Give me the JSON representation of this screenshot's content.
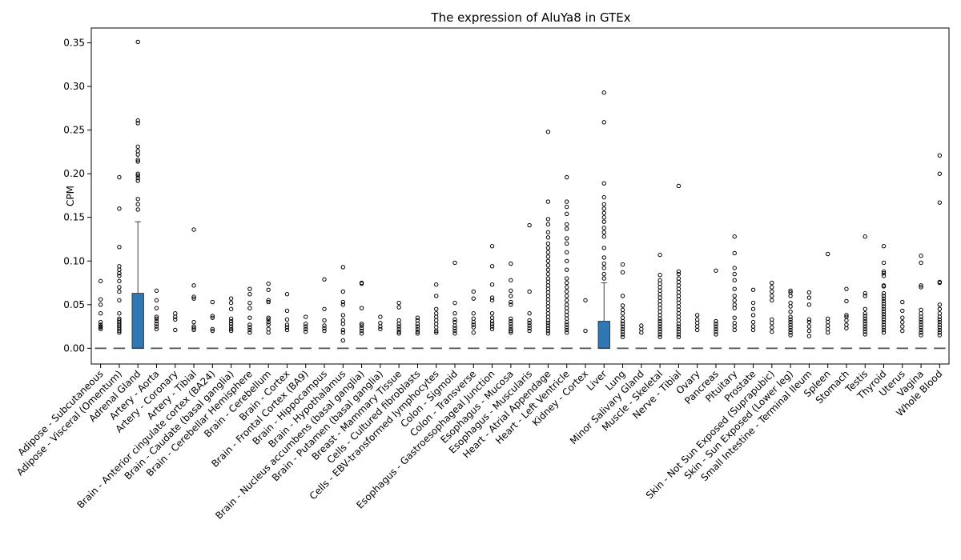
{
  "chart_data": {
    "type": "box",
    "title": "The expression of AluYa8 in GTEx",
    "xlabel": "",
    "ylabel": "CPM",
    "ylim": [
      -0.018,
      0.367
    ],
    "yticks": [
      0.0,
      0.05,
      0.1,
      0.15,
      0.2,
      0.25,
      0.3,
      0.35
    ],
    "ytick_labels": [
      "0.00",
      "0.05",
      "0.10",
      "0.15",
      "0.20",
      "0.25",
      "0.30",
      "0.35"
    ],
    "grid": false,
    "box_color": "#2f78b3",
    "categories": [
      "Adipose - Subcutaneous",
      "Adipose - Visceral (Omentum)",
      "Adrenal Gland",
      "Artery - Aorta",
      "Artery - Coronary",
      "Artery - Tibial",
      "Brain - Anterior cingulate cortex (BA24)",
      "Brain - Caudate (basal ganglia)",
      "Brain - Cerebellar Hemisphere",
      "Brain - Cerebellum",
      "Brain - Cortex",
      "Brain - Frontal Cortex (BA9)",
      "Brain - Hippocampus",
      "Brain - Hypothalamus",
      "Brain - Nucleus accumbens (basal ganglia)",
      "Brain - Putamen (basal ganglia)",
      "Breast - Mammary Tissue",
      "Cells - Cultured fibroblasts",
      "Cells - EBV-transformed lymphocytes",
      "Colon - Sigmoid",
      "Colon - Transverse",
      "Esophagus - Gastroesophageal Junction",
      "Esophagus - Mucosa",
      "Esophagus - Muscularis",
      "Heart - Atrial Appendage",
      "Heart - Left Ventricle",
      "Kidney - Cortex",
      "Liver",
      "Lung",
      "Minor Salivary Gland",
      "Muscle - Skeletal",
      "Nerve - Tibial",
      "Ovary",
      "Pancreas",
      "Pituitary",
      "Prostate",
      "Skin - Not Sun Exposed (Suprapubic)",
      "Skin - Sun Exposed (Lower leg)",
      "Small Intestine - Terminal Ileum",
      "Spleen",
      "Stomach",
      "Testis",
      "Thyroid",
      "Uterus",
      "Vagina",
      "Whole Blood"
    ],
    "boxes": [
      {
        "q1": 0,
        "median": 0,
        "q3": 0,
        "whislo": 0,
        "whishi": 0,
        "fliers": [
          0.022,
          0.024,
          0.025,
          0.027,
          0.03,
          0.04,
          0.05,
          0.056,
          0.077
        ]
      },
      {
        "q1": 0,
        "median": 0,
        "q3": 0,
        "whislo": 0,
        "whishi": 0,
        "fliers": [
          0.018,
          0.02,
          0.022,
          0.024,
          0.026,
          0.028,
          0.03,
          0.032,
          0.034,
          0.04,
          0.055,
          0.065,
          0.07,
          0.077,
          0.083,
          0.086,
          0.09,
          0.094,
          0.116,
          0.16,
          0.196
        ]
      },
      {
        "q1": 0,
        "median": 0,
        "q3": 0.063,
        "whislo": 0,
        "whishi": 0.145,
        "fliers": [
          0.159,
          0.165,
          0.171,
          0.192,
          0.195,
          0.198,
          0.2,
          0.214,
          0.216,
          0.222,
          0.226,
          0.231,
          0.258,
          0.261,
          0.351
        ]
      },
      {
        "q1": 0,
        "median": 0,
        "q3": 0,
        "whislo": 0,
        "whishi": 0,
        "fliers": [
          0.022,
          0.025,
          0.028,
          0.031,
          0.034,
          0.036,
          0.046,
          0.055,
          0.066
        ]
      },
      {
        "q1": 0,
        "median": 0,
        "q3": 0,
        "whislo": 0,
        "whishi": 0,
        "fliers": [
          0.021,
          0.033,
          0.036,
          0.04
        ]
      },
      {
        "q1": 0,
        "median": 0,
        "q3": 0,
        "whislo": 0,
        "whishi": 0,
        "fliers": [
          0.021,
          0.023,
          0.025,
          0.03,
          0.057,
          0.059,
          0.072,
          0.136
        ]
      },
      {
        "q1": 0,
        "median": 0,
        "q3": 0,
        "whislo": 0,
        "whishi": 0,
        "fliers": [
          0.02,
          0.022,
          0.035,
          0.037,
          0.053
        ]
      },
      {
        "q1": 0,
        "median": 0,
        "q3": 0,
        "whislo": 0,
        "whishi": 0,
        "fliers": [
          0.02,
          0.022,
          0.025,
          0.028,
          0.031,
          0.034,
          0.045,
          0.052,
          0.057
        ]
      },
      {
        "q1": 0,
        "median": 0,
        "q3": 0,
        "whislo": 0,
        "whishi": 0,
        "fliers": [
          0.018,
          0.021,
          0.024,
          0.027,
          0.035,
          0.046,
          0.052,
          0.062,
          0.068
        ]
      },
      {
        "q1": 0,
        "median": 0,
        "q3": 0,
        "whislo": 0,
        "whishi": 0,
        "fliers": [
          0.018,
          0.022,
          0.027,
          0.03,
          0.033,
          0.035,
          0.053,
          0.055,
          0.067,
          0.074
        ]
      },
      {
        "q1": 0,
        "median": 0,
        "q3": 0,
        "whislo": 0,
        "whishi": 0,
        "fliers": [
          0.021,
          0.024,
          0.027,
          0.033,
          0.043,
          0.062
        ]
      },
      {
        "q1": 0,
        "median": 0,
        "q3": 0,
        "whislo": 0,
        "whishi": 0,
        "fliers": [
          0.019,
          0.022,
          0.025,
          0.028,
          0.036
        ]
      },
      {
        "q1": 0,
        "median": 0,
        "q3": 0,
        "whislo": 0,
        "whishi": 0,
        "fliers": [
          0.02,
          0.023,
          0.026,
          0.032,
          0.045,
          0.079
        ]
      },
      {
        "q1": 0,
        "median": 0,
        "q3": 0,
        "whislo": 0,
        "whishi": 0,
        "fliers": [
          0.009,
          0.018,
          0.021,
          0.028,
          0.032,
          0.038,
          0.05,
          0.053,
          0.065,
          0.093
        ]
      },
      {
        "q1": 0,
        "median": 0,
        "q3": 0,
        "whislo": 0,
        "whishi": 0,
        "fliers": [
          0.017,
          0.02,
          0.023,
          0.026,
          0.028,
          0.046,
          0.074,
          0.075
        ]
      },
      {
        "q1": 0,
        "median": 0,
        "q3": 0,
        "whislo": 0,
        "whishi": 0,
        "fliers": [
          0.022,
          0.025,
          0.029,
          0.036
        ]
      },
      {
        "q1": 0,
        "median": 0,
        "q3": 0,
        "whislo": 0,
        "whishi": 0,
        "fliers": [
          0.017,
          0.019,
          0.022,
          0.025,
          0.028,
          0.032,
          0.047,
          0.052
        ]
      },
      {
        "q1": 0,
        "median": 0,
        "q3": 0,
        "whislo": 0,
        "whishi": 0,
        "fliers": [
          0.017,
          0.019,
          0.022,
          0.025,
          0.028,
          0.032,
          0.035
        ]
      },
      {
        "q1": 0,
        "median": 0,
        "q3": 0,
        "whislo": 0,
        "whishi": 0,
        "fliers": [
          0.018,
          0.02,
          0.024,
          0.028,
          0.032,
          0.036,
          0.04,
          0.045,
          0.06,
          0.073
        ]
      },
      {
        "q1": 0,
        "median": 0,
        "q3": 0,
        "whislo": 0,
        "whishi": 0,
        "fliers": [
          0.017,
          0.02,
          0.023,
          0.026,
          0.03,
          0.033,
          0.04,
          0.052,
          0.098
        ]
      },
      {
        "q1": 0,
        "median": 0,
        "q3": 0,
        "whislo": 0,
        "whishi": 0,
        "fliers": [
          0.018,
          0.024,
          0.027,
          0.03,
          0.034,
          0.04,
          0.057,
          0.065
        ]
      },
      {
        "q1": 0,
        "median": 0,
        "q3": 0,
        "whislo": 0,
        "whishi": 0,
        "fliers": [
          0.022,
          0.025,
          0.028,
          0.031,
          0.035,
          0.04,
          0.055,
          0.058,
          0.073,
          0.094,
          0.117
        ]
      },
      {
        "q1": 0,
        "median": 0,
        "q3": 0,
        "whislo": 0,
        "whishi": 0,
        "fliers": [
          0.018,
          0.02,
          0.022,
          0.025,
          0.028,
          0.031,
          0.034,
          0.05,
          0.053,
          0.06,
          0.066,
          0.078,
          0.097
        ]
      },
      {
        "q1": 0,
        "median": 0,
        "q3": 0,
        "whislo": 0,
        "whishi": 0,
        "fliers": [
          0.02,
          0.023,
          0.026,
          0.029,
          0.032,
          0.04,
          0.065,
          0.141
        ]
      },
      {
        "q1": 0,
        "median": 0,
        "q3": 0,
        "whislo": 0,
        "whishi": 0,
        "fliers": [
          0.017,
          0.02,
          0.023,
          0.026,
          0.029,
          0.032,
          0.036,
          0.04,
          0.044,
          0.048,
          0.052,
          0.056,
          0.06,
          0.064,
          0.068,
          0.072,
          0.076,
          0.08,
          0.085,
          0.09,
          0.095,
          0.1,
          0.105,
          0.11,
          0.115,
          0.12,
          0.127,
          0.133,
          0.142,
          0.148,
          0.168,
          0.248
        ]
      },
      {
        "q1": 0,
        "median": 0,
        "q3": 0,
        "whislo": 0,
        "whishi": 0,
        "fliers": [
          0.018,
          0.021,
          0.024,
          0.027,
          0.03,
          0.034,
          0.038,
          0.042,
          0.046,
          0.05,
          0.055,
          0.06,
          0.065,
          0.07,
          0.075,
          0.08,
          0.09,
          0.1,
          0.11,
          0.12,
          0.126,
          0.137,
          0.142,
          0.154,
          0.162,
          0.168,
          0.196
        ]
      },
      {
        "q1": 0,
        "median": 0,
        "q3": 0,
        "whislo": 0,
        "whishi": 0,
        "fliers": [
          0.02,
          0.055
        ]
      },
      {
        "q1": 0,
        "median": 0,
        "q3": 0.031,
        "whislo": 0,
        "whishi": 0.075,
        "fliers": [
          0.08,
          0.085,
          0.092,
          0.097,
          0.104,
          0.115,
          0.128,
          0.133,
          0.138,
          0.145,
          0.15,
          0.155,
          0.16,
          0.165,
          0.173,
          0.189,
          0.259,
          0.293
        ]
      },
      {
        "q1": 0,
        "median": 0,
        "q3": 0,
        "whislo": 0,
        "whishi": 0,
        "fliers": [
          0.013,
          0.016,
          0.019,
          0.022,
          0.025,
          0.028,
          0.031,
          0.035,
          0.04,
          0.044,
          0.049,
          0.06,
          0.087,
          0.096
        ]
      },
      {
        "q1": 0,
        "median": 0,
        "q3": 0,
        "whislo": 0,
        "whishi": 0,
        "fliers": [
          0.018,
          0.022,
          0.026
        ]
      },
      {
        "q1": 0,
        "median": 0,
        "q3": 0,
        "whislo": 0,
        "whishi": 0,
        "fliers": [
          0.013,
          0.016,
          0.019,
          0.022,
          0.025,
          0.028,
          0.031,
          0.034,
          0.038,
          0.042,
          0.046,
          0.05,
          0.054,
          0.058,
          0.062,
          0.066,
          0.07,
          0.074,
          0.078,
          0.084,
          0.107
        ]
      },
      {
        "q1": 0,
        "median": 0,
        "q3": 0,
        "whislo": 0,
        "whishi": 0,
        "fliers": [
          0.013,
          0.016,
          0.019,
          0.022,
          0.025,
          0.028,
          0.032,
          0.036,
          0.04,
          0.044,
          0.048,
          0.052,
          0.056,
          0.06,
          0.064,
          0.068,
          0.072,
          0.076,
          0.08,
          0.085,
          0.088,
          0.186
        ]
      },
      {
        "q1": 0,
        "median": 0,
        "q3": 0,
        "whislo": 0,
        "whishi": 0,
        "fliers": [
          0.021,
          0.025,
          0.029,
          0.033,
          0.038
        ]
      },
      {
        "q1": 0,
        "median": 0,
        "q3": 0,
        "whislo": 0,
        "whishi": 0,
        "fliers": [
          0.016,
          0.019,
          0.022,
          0.025,
          0.028,
          0.031,
          0.089
        ]
      },
      {
        "q1": 0,
        "median": 0,
        "q3": 0,
        "whislo": 0,
        "whishi": 0,
        "fliers": [
          0.021,
          0.025,
          0.029,
          0.035,
          0.046,
          0.05,
          0.055,
          0.06,
          0.068,
          0.078,
          0.085,
          0.092,
          0.109,
          0.128
        ]
      },
      {
        "q1": 0,
        "median": 0,
        "q3": 0,
        "whislo": 0,
        "whishi": 0,
        "fliers": [
          0.021,
          0.025,
          0.03,
          0.038,
          0.045,
          0.052,
          0.067
        ]
      },
      {
        "q1": 0,
        "median": 0,
        "q3": 0,
        "whislo": 0,
        "whishi": 0,
        "fliers": [
          0.019,
          0.024,
          0.029,
          0.033,
          0.055,
          0.06,
          0.065,
          0.07,
          0.075
        ]
      },
      {
        "q1": 0,
        "median": 0,
        "q3": 0,
        "whislo": 0,
        "whishi": 0,
        "fliers": [
          0.015,
          0.018,
          0.021,
          0.024,
          0.027,
          0.03,
          0.033,
          0.036,
          0.042,
          0.048,
          0.052,
          0.06,
          0.064,
          0.066
        ]
      },
      {
        "q1": 0,
        "median": 0,
        "q3": 0,
        "whislo": 0,
        "whishi": 0,
        "fliers": [
          0.014,
          0.02,
          0.025,
          0.03,
          0.033,
          0.05,
          0.058,
          0.064
        ]
      },
      {
        "q1": 0,
        "median": 0,
        "q3": 0,
        "whislo": 0,
        "whishi": 0,
        "fliers": [
          0.018,
          0.022,
          0.026,
          0.03,
          0.034,
          0.108
        ]
      },
      {
        "q1": 0,
        "median": 0,
        "q3": 0,
        "whislo": 0,
        "whishi": 0,
        "fliers": [
          0.023,
          0.027,
          0.032,
          0.036,
          0.038,
          0.054,
          0.068
        ]
      },
      {
        "q1": 0,
        "median": 0,
        "q3": 0,
        "whislo": 0,
        "whishi": 0,
        "fliers": [
          0.016,
          0.019,
          0.022,
          0.025,
          0.028,
          0.031,
          0.034,
          0.037,
          0.04,
          0.045,
          0.06,
          0.063,
          0.128
        ]
      },
      {
        "q1": 0,
        "median": 0,
        "q3": 0,
        "whislo": 0,
        "whishi": 0,
        "fliers": [
          0.018,
          0.021,
          0.024,
          0.027,
          0.03,
          0.033,
          0.036,
          0.039,
          0.042,
          0.045,
          0.048,
          0.051,
          0.054,
          0.057,
          0.06,
          0.063,
          0.071,
          0.072,
          0.083,
          0.086,
          0.088,
          0.098,
          0.117
        ]
      },
      {
        "q1": 0,
        "median": 0,
        "q3": 0,
        "whislo": 0,
        "whishi": 0,
        "fliers": [
          0.02,
          0.025,
          0.03,
          0.035,
          0.043,
          0.053
        ]
      },
      {
        "q1": 0,
        "median": 0,
        "q3": 0,
        "whislo": 0,
        "whishi": 0,
        "fliers": [
          0.015,
          0.018,
          0.021,
          0.024,
          0.027,
          0.03,
          0.033,
          0.036,
          0.04,
          0.044,
          0.07,
          0.072,
          0.098,
          0.106
        ]
      },
      {
        "q1": 0,
        "median": 0,
        "q3": 0,
        "whislo": 0,
        "whishi": 0,
        "fliers": [
          0.015,
          0.018,
          0.021,
          0.024,
          0.027,
          0.03,
          0.033,
          0.036,
          0.04,
          0.045,
          0.05,
          0.075,
          0.076,
          0.167,
          0.2,
          0.221
        ]
      }
    ]
  }
}
